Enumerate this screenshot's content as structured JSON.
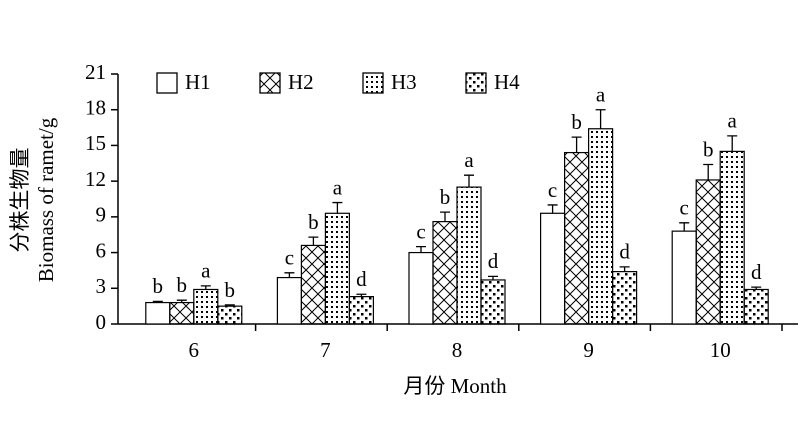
{
  "chart_data": {
    "type": "bar",
    "categories": [
      "6",
      "7",
      "8",
      "9",
      "10"
    ],
    "x_label": "月份 Month",
    "y_label": [
      "分株生物量",
      "Biomass of ramet/g"
    ],
    "ylim": [
      0,
      21
    ],
    "yticks": [
      0,
      3,
      6,
      9,
      12,
      15,
      18,
      21
    ],
    "series": [
      {
        "name": "H1",
        "pattern": "none",
        "color": "#000000",
        "values": [
          1.8,
          3.9,
          6.0,
          9.3,
          7.8
        ],
        "errors": [
          0.1,
          0.4,
          0.5,
          0.7,
          0.7
        ],
        "letters": [
          "b",
          "c",
          "c",
          "c",
          "c"
        ]
      },
      {
        "name": "H2",
        "pattern": "crosshatch",
        "color": "#000000",
        "values": [
          1.8,
          6.6,
          8.6,
          14.4,
          12.1
        ],
        "errors": [
          0.2,
          0.7,
          0.8,
          1.3,
          1.3
        ],
        "letters": [
          "b",
          "b",
          "b",
          "b",
          "b"
        ]
      },
      {
        "name": "H3",
        "pattern": "dots",
        "color": "#000000",
        "values": [
          2.9,
          9.3,
          11.5,
          16.4,
          14.5
        ],
        "errors": [
          0.3,
          0.9,
          1.0,
          1.6,
          1.3
        ],
        "letters": [
          "a",
          "a",
          "a",
          "a",
          "a"
        ]
      },
      {
        "name": "H4",
        "pattern": "checker",
        "color": "#000000",
        "values": [
          1.5,
          2.3,
          3.7,
          4.4,
          2.9
        ],
        "errors": [
          0.1,
          0.2,
          0.3,
          0.4,
          0.2
        ],
        "letters": [
          "b",
          "d",
          "d",
          "d",
          "d"
        ]
      }
    ]
  }
}
